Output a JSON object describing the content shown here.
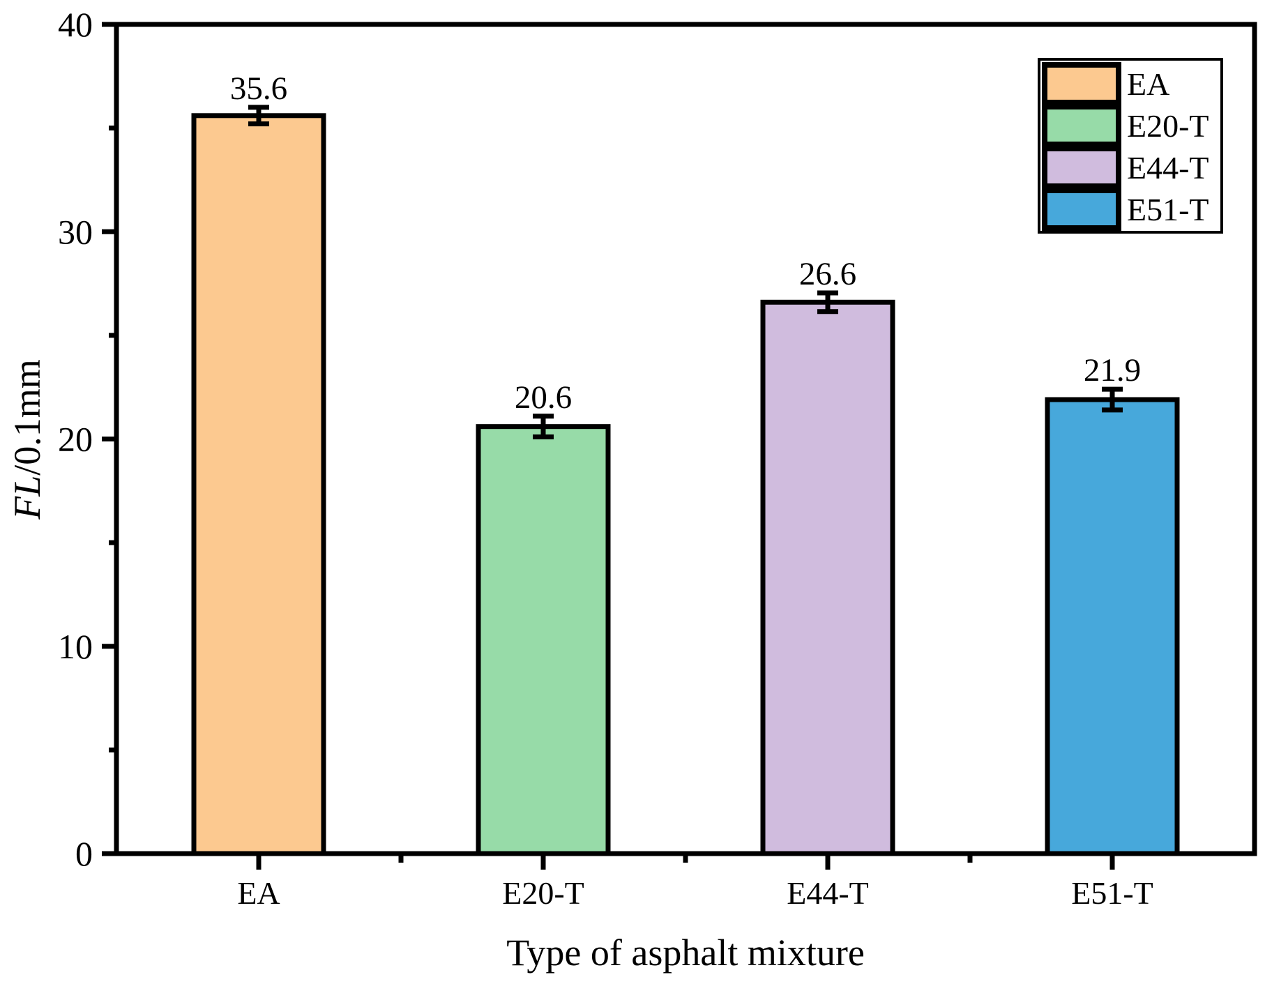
{
  "chart_data": {
    "type": "bar",
    "title": "",
    "xlabel": "Type of asphalt mixture",
    "ylabel_italic": "FL",
    "ylabel_rest": "/0.1mm",
    "categories": [
      "EA",
      "E20-T",
      "E44-T",
      "E51-T"
    ],
    "values": [
      35.6,
      20.6,
      26.6,
      21.9
    ],
    "value_labels": [
      "35.6",
      "20.6",
      "26.6",
      "21.9"
    ],
    "errors": [
      0.4,
      0.5,
      0.45,
      0.5
    ],
    "bar_colors": [
      "#FCC990",
      "#97DBA8",
      "#D0BCDE",
      "#47A8DB"
    ],
    "bar_edge_color": "#000000",
    "axis_color": "#000000",
    "ylim": [
      0,
      40
    ],
    "y_major_ticks": [
      0,
      10,
      20,
      30,
      40
    ],
    "y_minor_ticks": [
      5,
      15,
      25,
      35
    ],
    "grid": false,
    "legend": {
      "position": "top-right",
      "items": [
        {
          "label": "EA",
          "color": "#FCC990"
        },
        {
          "label": "E20-T",
          "color": "#97DBA8"
        },
        {
          "label": "E44-T",
          "color": "#D0BCDE"
        },
        {
          "label": "E51-T",
          "color": "#47A8DB"
        }
      ]
    }
  }
}
